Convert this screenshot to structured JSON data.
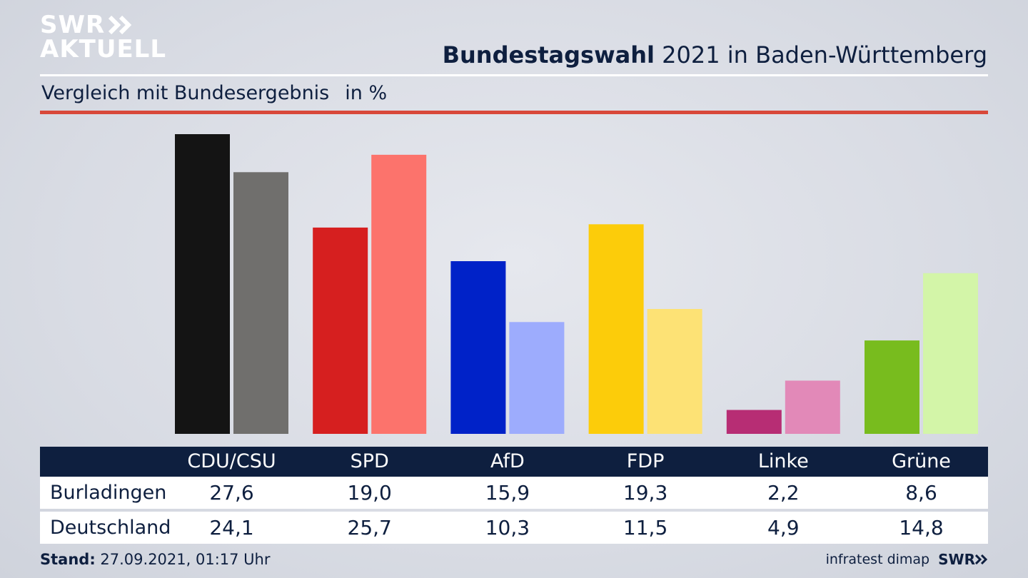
{
  "brand": {
    "line1": "SWR",
    "line2": "AKTUELL"
  },
  "header": {
    "title_bold": "Bundestagswahl",
    "title_rest": " 2021 in Baden-Württemberg",
    "subtitle": "Vergleich mit Bundesergebnis",
    "unit": "in %"
  },
  "chart_data": {
    "type": "bar",
    "categories": [
      "CDU/CSU",
      "SPD",
      "AfD",
      "FDP",
      "Linke",
      "Grüne"
    ],
    "series": [
      {
        "name": "Burladingen",
        "values": [
          27.6,
          19.0,
          15.9,
          19.3,
          2.2,
          8.6
        ]
      },
      {
        "name": "Deutschland",
        "values": [
          24.1,
          25.7,
          10.3,
          11.5,
          4.9,
          14.8
        ]
      }
    ],
    "colors": {
      "Burladingen": [
        "#141414",
        "#d61f1f",
        "#0022c8",
        "#fccc0a",
        "#b72d74",
        "#78bc1e"
      ],
      "Deutschland": [
        "#706f6d",
        "#fc736c",
        "#9dacfd",
        "#fde275",
        "#e289b8",
        "#d3f5a8"
      ]
    },
    "ylim": [
      0,
      28
    ],
    "grid": false,
    "legend": "none"
  },
  "table": {
    "headers": [
      "CDU/CSU",
      "SPD",
      "AfD",
      "FDP",
      "Linke",
      "Grüne"
    ],
    "rows": [
      {
        "label": "Burladingen",
        "values": [
          "27,6",
          "19,0",
          "15,9",
          "19,3",
          "2,2",
          "8,6"
        ]
      },
      {
        "label": "Deutschland",
        "values": [
          "24,1",
          "25,7",
          "10,3",
          "11,5",
          "4,9",
          "14,8"
        ]
      }
    ]
  },
  "footer": {
    "stand_label": "Stand:",
    "stand_value": " 27.09.2021, 01:17 Uhr",
    "source": "infratest dimap",
    "swr_small": "SWR"
  }
}
